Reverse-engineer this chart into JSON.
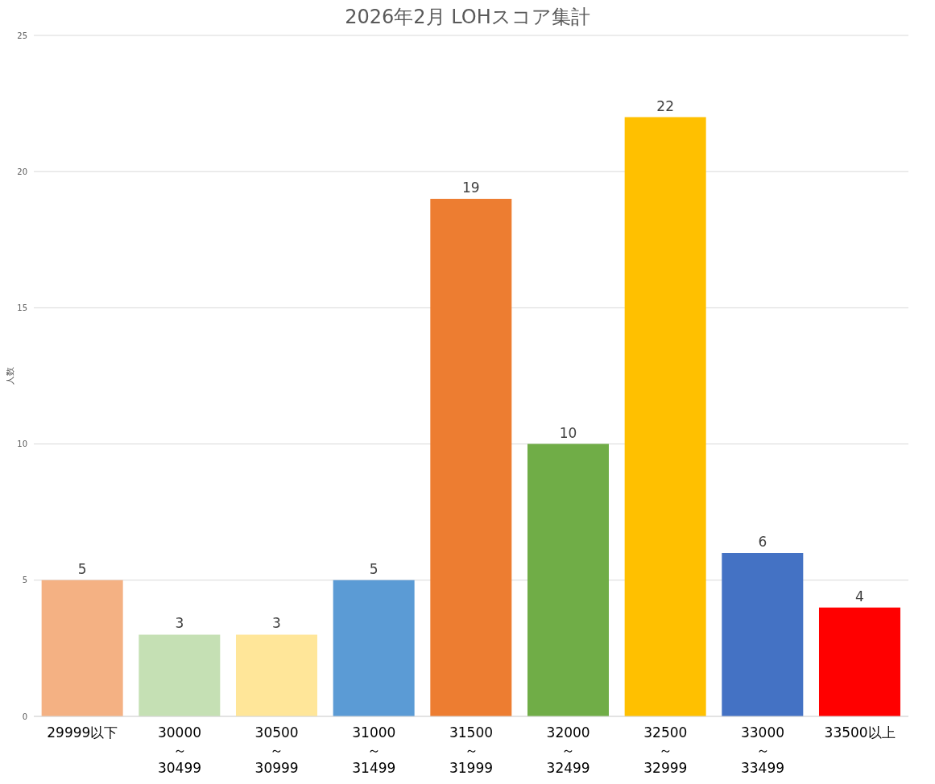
{
  "chart_data": {
    "type": "bar",
    "title": "2026年2月 LOHスコア集計",
    "ylabel": "人数",
    "categories": [
      "29999以下",
      "30000\n～\n30499",
      "30500\n～\n30999",
      "31000\n～\n31499",
      "31500\n～\n31999",
      "32000\n～\n32499",
      "32500\n～\n32999",
      "33000\n～\n33499",
      "33500以上"
    ],
    "values": [
      5,
      3,
      3,
      5,
      19,
      10,
      22,
      6,
      4
    ],
    "colors": [
      "#f4b183",
      "#c5e0b4",
      "#ffe699",
      "#5b9bd5",
      "#ed7d31",
      "#70ad47",
      "#ffc000",
      "#4472c4",
      "#ff0000"
    ],
    "ylim": [
      0,
      25
    ],
    "yticks": [
      0,
      5,
      10,
      15,
      20,
      25
    ],
    "grid": "y",
    "data_labels": true,
    "legend": false
  }
}
